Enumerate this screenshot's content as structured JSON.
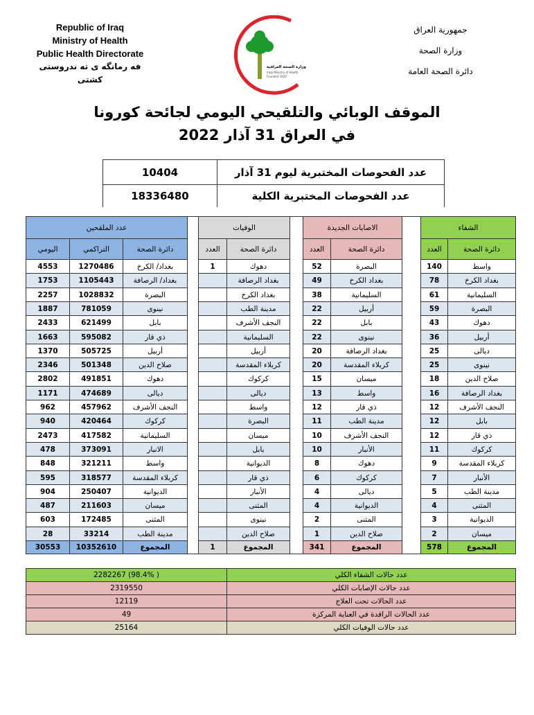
{
  "header": {
    "english": [
      "Republic of Iraq",
      "Ministry of Health",
      "Public Health Directorate",
      "فه رمانگه ى ته ندروستى كشتى"
    ],
    "arabic": [
      "جمهورية العراق",
      "وزارة الصحة",
      "دائرة الصحة العامة"
    ],
    "logo_text": [
      "وزارة الصحة العراقية",
      "Iraqi Ministry of Health",
      "Founded 1920"
    ],
    "title_line1": "الموقف الوبائي والتلقيحي اليومي لجائحة كورونا",
    "title_line2": "في العراق  31  آذار  2022"
  },
  "tests": {
    "daily_label": "عدد الفحوصات المختبرية  ليوم  31  آذار",
    "daily_value": "10404",
    "total_label": "عدد الفحوصات المختبرية الكلية",
    "total_value": "18336480"
  },
  "colors": {
    "vaccinated": "#8db4e2",
    "deaths": "#d9d9d9",
    "new_cases": "#e6b8b7",
    "recovery": "#92d050",
    "alt_row": "#dce6f1",
    "summary_deaths": "#ddd9c4"
  },
  "sections": {
    "recovery": {
      "title": "الشفاء",
      "dept_header": "دائرة الصحة",
      "count_header": "العدد",
      "total_label": "المجموع",
      "total": "578",
      "rows": [
        [
          "واسط",
          "140"
        ],
        [
          "بغداد الكرخ",
          "78"
        ],
        [
          "السليمانية",
          "61"
        ],
        [
          "البصرة",
          "59"
        ],
        [
          "دهوك",
          "43"
        ],
        [
          "أربيل",
          "36"
        ],
        [
          "ديالى",
          "25"
        ],
        [
          "نينوى",
          "25"
        ],
        [
          "صلاح الدين",
          "18"
        ],
        [
          "بغداد الرصافة",
          "16"
        ],
        [
          "النجف الأشرف",
          "12"
        ],
        [
          "بابل",
          "12"
        ],
        [
          "ذي قار",
          "12"
        ],
        [
          "كركوك",
          "11"
        ],
        [
          "كربلاء المقدسة",
          "9"
        ],
        [
          "الأنبار",
          "7"
        ],
        [
          "مدينة الطب",
          "5"
        ],
        [
          "المثنى",
          "4"
        ],
        [
          "الديوانية",
          "3"
        ],
        [
          "ميسان",
          "2"
        ]
      ]
    },
    "new_cases": {
      "title": "الاصابات الجديدة",
      "dept_header": "دائرة الصحة",
      "count_header": "العدد",
      "total_label": "المجموع",
      "total": "341",
      "rows": [
        [
          "البصرة",
          "52"
        ],
        [
          "بغداد الكرخ",
          "49"
        ],
        [
          "السليمانية",
          "38"
        ],
        [
          "أربيل",
          "22"
        ],
        [
          "بابل",
          "22"
        ],
        [
          "نينوى",
          "22"
        ],
        [
          "بغداد الرصافة",
          "20"
        ],
        [
          "كربلاء المقدسة",
          "20"
        ],
        [
          "ميسان",
          "15"
        ],
        [
          "واسط",
          "13"
        ],
        [
          "ذي قار",
          "12"
        ],
        [
          "مدينة الطب",
          "11"
        ],
        [
          "النجف الأشرف",
          "10"
        ],
        [
          "الأنبار",
          "10"
        ],
        [
          "دهوك",
          "8"
        ],
        [
          "كركوك",
          "6"
        ],
        [
          "ديالى",
          "4"
        ],
        [
          "الديوانية",
          "4"
        ],
        [
          "المثنى",
          "2"
        ],
        [
          "صلاح الدين",
          "1"
        ]
      ]
    },
    "deaths": {
      "title": "الوفيات",
      "dept_header": "دائرة الصحة",
      "count_header": "العدد",
      "total_label": "المجموع",
      "total": "1",
      "rows": [
        [
          "دهوك",
          "1"
        ],
        [
          "بغداد الرصافة",
          ""
        ],
        [
          "بغداد الكرخ",
          ""
        ],
        [
          "مدينة الطب",
          ""
        ],
        [
          "النجف الأشرف",
          ""
        ],
        [
          "السليمانية",
          ""
        ],
        [
          "أربيل",
          ""
        ],
        [
          "كربلاء المقدسة",
          ""
        ],
        [
          "كركوك",
          ""
        ],
        [
          "ديالى",
          ""
        ],
        [
          "واسط",
          ""
        ],
        [
          "البصرة",
          ""
        ],
        [
          "ميسان",
          ""
        ],
        [
          "بابل",
          ""
        ],
        [
          "الديوانية",
          ""
        ],
        [
          "ذي قار",
          ""
        ],
        [
          "الأنبار",
          ""
        ],
        [
          "المثنى",
          ""
        ],
        [
          "نينوى",
          ""
        ],
        [
          "صلاح الدين",
          ""
        ]
      ]
    },
    "vaccinated": {
      "title": "عدد الملقحين",
      "dept_header": "دائرة الصحة",
      "cumulative_header": "التراكمي",
      "daily_header": "اليومي",
      "total_label": "المجموع",
      "total_cumulative": "10352610",
      "total_daily": "30553",
      "rows": [
        [
          "بغداد/ الكرخ",
          "1270486",
          "4553"
        ],
        [
          "بغداد/ الرصافة",
          "1105443",
          "1753"
        ],
        [
          "البصرة",
          "1028832",
          "2257"
        ],
        [
          "نينوى",
          "781059",
          "1887"
        ],
        [
          "بابل",
          "621499",
          "2433"
        ],
        [
          "ذي قار",
          "595082",
          "1663"
        ],
        [
          "أربيل",
          "505725",
          "1370"
        ],
        [
          "صلاح الدين",
          "501348",
          "2346"
        ],
        [
          "دهوك",
          "491851",
          "2802"
        ],
        [
          "ديالى",
          "474689",
          "1171"
        ],
        [
          "النجف الأشرف",
          "457962",
          "962"
        ],
        [
          "كركوك",
          "420464",
          "940"
        ],
        [
          "السليمانية",
          "417582",
          "2473"
        ],
        [
          "الانبار",
          "373091",
          "478"
        ],
        [
          "واسط",
          "321211",
          "848"
        ],
        [
          "كربلاء المقدسة",
          "318577",
          "595"
        ],
        [
          "الديوانية",
          "250407",
          "904"
        ],
        [
          "ميسان",
          "211603",
          "487"
        ],
        [
          "المثنى",
          "172485",
          "603"
        ],
        [
          "مدينة الطب",
          "33214",
          "28"
        ]
      ]
    }
  },
  "summary": [
    {
      "label": "عدد حالات الشفاء الكلي",
      "value": "( 98.4%)  2282267",
      "color": "#92d050"
    },
    {
      "label": "عدد حالات الإصابات الكلي",
      "value": "2319550",
      "color": "#e6b8b7"
    },
    {
      "label": "عدد الحالات تحت العلاج",
      "value": "12119",
      "color": "#e6b8b7"
    },
    {
      "label": "عدد الحالات الراقدة في العناية المركزة",
      "value": "49",
      "color": "#e6b8b7"
    },
    {
      "label": "عدد حالات الوفيات الكلي",
      "value": "25164",
      "color": "#ddd9c4"
    }
  ]
}
